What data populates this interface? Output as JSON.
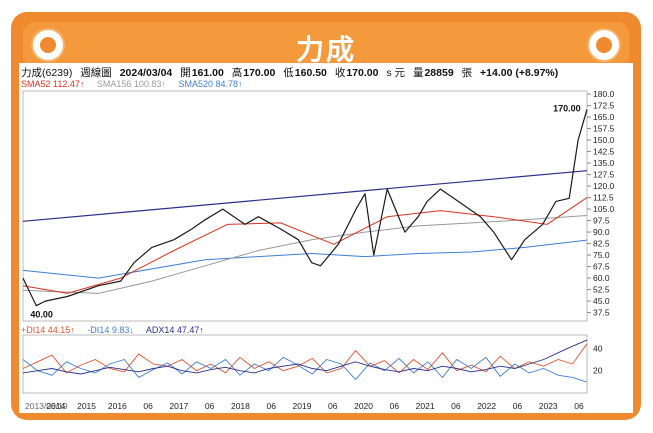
{
  "title": "力成",
  "header": {
    "stock": "力成(6239)",
    "period": "週線圖",
    "date": "2024/03/04",
    "open_label": "開",
    "open": "161.00",
    "high_label": "高",
    "high": "170.00",
    "low_label": "低",
    "low": "160.50",
    "close_label": "收",
    "close": "170.00",
    "currency": "s 元",
    "volume_label": "量",
    "volume": "28859",
    "volume_unit": "張",
    "change": "+14.00 (+8.97%)"
  },
  "indicators_top": [
    {
      "label": "SMA52 112.47↑",
      "color": "#d9331f"
    },
    {
      "label": "SMA156 100.83↑",
      "color": "#999999"
    },
    {
      "label": "SMA520 84.78↑",
      "color": "#3f7fd4"
    }
  ],
  "indicators_bottom": [
    {
      "label": "+DI14 44.15↑",
      "color": "#e0522e"
    },
    {
      "label": "-DI14 9.83↓",
      "color": "#3f7fd4"
    },
    {
      "label": "ADX14 47.47↑",
      "color": "#2a2f8a"
    }
  ],
  "annotations": {
    "high": "170.00",
    "low": "40.00"
  },
  "colors": {
    "frame": "#f08a2e",
    "price": "#1a1a1a",
    "sma52": "#d9331f",
    "sma156": "#999999",
    "sma520": "#3f7fd4",
    "trendline": "#2a2f8a",
    "pdi": "#e0522e",
    "mdi": "#3f7fd4",
    "adx": "#2a2f8a"
  },
  "chart_data": [
    {
      "type": "line",
      "ylim": [
        32,
        182
      ],
      "yticks": [
        "180.0",
        "172.5",
        "165.0",
        "157.5",
        "150.0",
        "142.5",
        "135.0",
        "127.5",
        "120.0",
        "112.5",
        "105.0",
        "97.5",
        "90.0",
        "82.5",
        "75.0",
        "67.5",
        "60.0",
        "52.5",
        "45.0",
        "37.5"
      ],
      "xticks": [
        "2013/08/19",
        "2014",
        "2015",
        "2016",
        "06",
        "2017",
        "06",
        "2018",
        "06",
        "2019",
        "06",
        "2020",
        "06",
        "2021",
        "06",
        "2022",
        "06",
        "2023",
        "06"
      ],
      "series": [
        {
          "key": "price",
          "x": [
            "2013/08",
            "2013/11",
            "2014/01",
            "2014/06",
            "2015/01",
            "2015/06",
            "2015/09",
            "2016/01",
            "2016/06",
            "2016/10",
            "2017/01",
            "2017/05",
            "2017/10",
            "2018/01",
            "2018/06",
            "2018/10",
            "2019/01",
            "2019/03",
            "2019/07",
            "2019/11",
            "2020/01",
            "2020/03",
            "2020/06",
            "2020/10",
            "2021/01",
            "2021/03",
            "2021/06",
            "2021/09",
            "2021/12",
            "2022/03",
            "2022/06",
            "2022/10",
            "2023/01",
            "2023/05",
            "2023/08",
            "2023/11",
            "2024/01",
            "2024/03"
          ],
          "y": [
            60,
            42,
            45,
            48,
            55,
            58,
            70,
            80,
            85,
            92,
            98,
            105,
            95,
            100,
            92,
            85,
            70,
            68,
            82,
            105,
            115,
            75,
            118,
            90,
            100,
            110,
            118,
            112,
            106,
            100,
            90,
            72,
            85,
            95,
            110,
            112,
            150,
            170
          ]
        },
        {
          "key": "sma52",
          "x": [
            "2013/08",
            "2014/06",
            "2015/06",
            "2016/06",
            "2017/06",
            "2018/06",
            "2019/06",
            "2020/06",
            "2021/06",
            "2022/06",
            "2023/06",
            "2024/03"
          ],
          "y": [
            55,
            50,
            60,
            78,
            95,
            96,
            82,
            100,
            104,
            100,
            95,
            112.47
          ]
        },
        {
          "key": "sma156",
          "x": [
            "2013/08",
            "2015/01",
            "2016/01",
            "2017/01",
            "2018/01",
            "2019/01",
            "2020/01",
            "2021/01",
            "2022/01",
            "2023/01",
            "2024/03"
          ],
          "y": [
            52,
            50,
            58,
            68,
            78,
            85,
            90,
            94,
            96,
            98,
            100.83
          ]
        },
        {
          "key": "sma520",
          "x": [
            "2013/08",
            "2015/01",
            "2017/01",
            "2019/01",
            "2020/01",
            "2021/01",
            "2022/01",
            "2023/01",
            "2024/03"
          ],
          "y": [
            65,
            60,
            72,
            76,
            74,
            76,
            77,
            80,
            84.78
          ]
        },
        {
          "key": "trendline",
          "x": [
            "2013/08",
            "2024/03"
          ],
          "y": [
            97,
            130
          ]
        }
      ]
    },
    {
      "type": "line",
      "yticks": [
        "40",
        "20"
      ],
      "series": [
        {
          "key": "pdi",
          "name": "+DI14",
          "values": [
            22,
            28,
            34,
            18,
            25,
            30,
            22,
            19,
            35,
            26,
            24,
            30,
            20,
            26,
            18,
            32,
            22,
            28,
            20,
            24,
            31,
            18,
            22,
            38,
            24,
            29,
            18,
            30,
            21,
            36,
            20,
            25,
            19,
            33,
            22,
            28,
            24,
            30,
            26,
            44.15
          ]
        },
        {
          "key": "mdi",
          "name": "-DI14",
          "values": [
            30,
            20,
            16,
            28,
            22,
            18,
            26,
            30,
            14,
            21,
            27,
            17,
            28,
            22,
            30,
            16,
            26,
            20,
            32,
            25,
            17,
            30,
            26,
            12,
            27,
            20,
            31,
            18,
            28,
            14,
            30,
            22,
            32,
            15,
            26,
            18,
            22,
            16,
            14,
            9.83
          ]
        },
        {
          "key": "adx",
          "name": "ADX14",
          "values": [
            18,
            20,
            22,
            19,
            17,
            20,
            23,
            21,
            19,
            22,
            24,
            20,
            18,
            21,
            23,
            20,
            18,
            22,
            24,
            26,
            22,
            20,
            24,
            28,
            24,
            21,
            19,
            22,
            20,
            24,
            22,
            19,
            21,
            24,
            22,
            26,
            30,
            36,
            42,
            47.47
          ]
        }
      ]
    }
  ]
}
